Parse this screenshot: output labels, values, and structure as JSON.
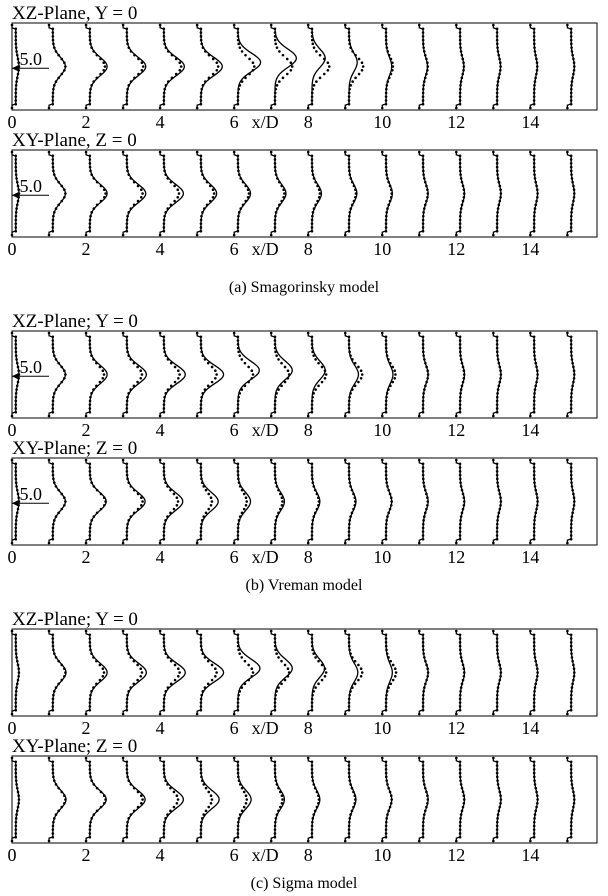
{
  "figure": {
    "captions": [
      "(a)  Smagorinsky model",
      "(b)  Vreman model",
      "(c)  Sigma model"
    ]
  },
  "chart_data": [
    {
      "type": "line",
      "title": "XZ-Plane, Y = 0",
      "xlabel": "x/D",
      "ticks": [
        0,
        2,
        4,
        6,
        8,
        10,
        12,
        14
      ],
      "xlim": [
        0,
        15.8
      ],
      "scale_label": "5.0",
      "stations": [
        0,
        1,
        2,
        3,
        4,
        5,
        6,
        7,
        8,
        9,
        10,
        11,
        12,
        13,
        14,
        15
      ],
      "series": [
        {
          "style": "solid",
          "amplitude": [
            0.1,
            0.4,
            0.55,
            0.6,
            0.65,
            0.68,
            0.72,
            0.68,
            0.42,
            0.26,
            0.18,
            0.14,
            0.12,
            0.11,
            0.1,
            0.1
          ],
          "peak": [
            0.5,
            0.5,
            0.5,
            0.5,
            0.5,
            0.5,
            0.45,
            0.4,
            0.4,
            0.45,
            0.5,
            0.5,
            0.5,
            0.5,
            0.5,
            0.5
          ]
        },
        {
          "style": "dotted",
          "amplitude": [
            0.1,
            0.4,
            0.48,
            0.52,
            0.55,
            0.55,
            0.52,
            0.55,
            0.55,
            0.45,
            0.22,
            0.15,
            0.12,
            0.11,
            0.1,
            0.1
          ],
          "peak": [
            0.5,
            0.5,
            0.5,
            0.5,
            0.5,
            0.5,
            0.5,
            0.5,
            0.5,
            0.5,
            0.5,
            0.5,
            0.5,
            0.5,
            0.5,
            0.5
          ]
        }
      ]
    },
    {
      "type": "line",
      "title": "XY-Plane, Z = 0",
      "xlabel": "x/D",
      "ticks": [
        0,
        2,
        4,
        6,
        8,
        10,
        12,
        14
      ],
      "xlim": [
        0,
        15.8
      ],
      "scale_label": "5.0",
      "stations": [
        0,
        1,
        2,
        3,
        4,
        5,
        6,
        7,
        8,
        9,
        10,
        11,
        12,
        13,
        14,
        15
      ],
      "series": [
        {
          "style": "solid",
          "amplitude": [
            0.1,
            0.4,
            0.55,
            0.6,
            0.62,
            0.5,
            0.4,
            0.35,
            0.3,
            0.25,
            0.2,
            0.16,
            0.14,
            0.12,
            0.11,
            0.1
          ],
          "peak": [
            0.5,
            0.5,
            0.5,
            0.5,
            0.5,
            0.5,
            0.5,
            0.5,
            0.5,
            0.5,
            0.5,
            0.5,
            0.5,
            0.5,
            0.5,
            0.5
          ]
        },
        {
          "style": "dotted",
          "amplitude": [
            0.1,
            0.4,
            0.5,
            0.5,
            0.48,
            0.42,
            0.35,
            0.3,
            0.25,
            0.22,
            0.18,
            0.15,
            0.13,
            0.12,
            0.11,
            0.1
          ],
          "peak": [
            0.5,
            0.5,
            0.5,
            0.5,
            0.5,
            0.5,
            0.5,
            0.5,
            0.5,
            0.5,
            0.5,
            0.5,
            0.5,
            0.5,
            0.5,
            0.5
          ]
        }
      ]
    },
    {
      "type": "line",
      "title": "XZ-Plane; Y = 0",
      "xlabel": "x/D",
      "ticks": [
        0,
        2,
        4,
        6,
        8,
        10,
        12,
        14
      ],
      "xlim": [
        0,
        15.8
      ],
      "scale_label": "5.0",
      "stations": [
        0,
        1,
        2,
        3,
        4,
        5,
        6,
        7,
        8,
        9,
        10,
        11,
        12,
        13,
        14,
        15
      ],
      "series": [
        {
          "style": "solid",
          "amplitude": [
            0.1,
            0.4,
            0.55,
            0.62,
            0.68,
            0.72,
            0.68,
            0.55,
            0.42,
            0.3,
            0.22,
            0.16,
            0.14,
            0.12,
            0.11,
            0.1
          ],
          "peak": [
            0.5,
            0.5,
            0.5,
            0.5,
            0.5,
            0.5,
            0.45,
            0.45,
            0.45,
            0.5,
            0.5,
            0.5,
            0.5,
            0.5,
            0.5,
            0.5
          ]
        },
        {
          "style": "dotted",
          "amplitude": [
            0.1,
            0.4,
            0.45,
            0.48,
            0.5,
            0.5,
            0.48,
            0.45,
            0.45,
            0.42,
            0.3,
            0.16,
            0.13,
            0.12,
            0.11,
            0.1
          ],
          "peak": [
            0.5,
            0.5,
            0.5,
            0.5,
            0.5,
            0.5,
            0.5,
            0.5,
            0.5,
            0.5,
            0.5,
            0.5,
            0.5,
            0.5,
            0.5,
            0.5
          ]
        }
      ]
    },
    {
      "type": "line",
      "title": "XY-Plane; Z = 0",
      "xlabel": "x/D",
      "ticks": [
        0,
        2,
        4,
        6,
        8,
        10,
        12,
        14
      ],
      "xlim": [
        0,
        15.8
      ],
      "scale_label": "5.0",
      "stations": [
        0,
        1,
        2,
        3,
        4,
        5,
        6,
        7,
        8,
        9,
        10,
        11,
        12,
        13,
        14,
        15
      ],
      "series": [
        {
          "style": "solid",
          "amplitude": [
            0.1,
            0.4,
            0.52,
            0.58,
            0.6,
            0.55,
            0.4,
            0.3,
            0.25,
            0.22,
            0.18,
            0.16,
            0.14,
            0.12,
            0.11,
            0.1
          ],
          "peak": [
            0.5,
            0.5,
            0.5,
            0.5,
            0.5,
            0.5,
            0.5,
            0.5,
            0.5,
            0.5,
            0.5,
            0.5,
            0.5,
            0.5,
            0.5,
            0.5
          ]
        },
        {
          "style": "dotted",
          "amplitude": [
            0.1,
            0.4,
            0.5,
            0.5,
            0.45,
            0.35,
            0.28,
            0.24,
            0.22,
            0.2,
            0.18,
            0.15,
            0.13,
            0.12,
            0.11,
            0.1
          ],
          "peak": [
            0.5,
            0.5,
            0.5,
            0.5,
            0.5,
            0.5,
            0.5,
            0.5,
            0.5,
            0.5,
            0.5,
            0.5,
            0.5,
            0.5,
            0.5,
            0.5
          ]
        }
      ]
    },
    {
      "type": "line",
      "title": "XZ-Plane; Y = 0",
      "xlabel": "x/D",
      "ticks": [
        0,
        2,
        4,
        6,
        8,
        10,
        12,
        14
      ],
      "xlim": [
        0,
        15.8
      ],
      "scale_label": "",
      "stations": [
        0,
        1,
        2,
        3,
        4,
        5,
        6,
        7,
        8,
        9,
        10,
        11,
        12,
        13,
        14,
        15
      ],
      "series": [
        {
          "style": "solid",
          "amplitude": [
            0.1,
            0.42,
            0.55,
            0.62,
            0.68,
            0.72,
            0.7,
            0.55,
            0.4,
            0.28,
            0.2,
            0.16,
            0.14,
            0.12,
            0.11,
            0.1
          ],
          "peak": [
            0.5,
            0.5,
            0.5,
            0.5,
            0.5,
            0.5,
            0.45,
            0.45,
            0.45,
            0.5,
            0.5,
            0.5,
            0.5,
            0.5,
            0.5,
            0.5
          ]
        },
        {
          "style": "dotted",
          "amplitude": [
            0.1,
            0.4,
            0.45,
            0.48,
            0.5,
            0.5,
            0.48,
            0.45,
            0.45,
            0.42,
            0.32,
            0.16,
            0.13,
            0.12,
            0.11,
            0.1
          ],
          "peak": [
            0.5,
            0.5,
            0.5,
            0.5,
            0.5,
            0.5,
            0.5,
            0.5,
            0.5,
            0.5,
            0.5,
            0.5,
            0.5,
            0.5,
            0.5,
            0.5
          ]
        }
      ]
    },
    {
      "type": "line",
      "title": "XY-Plane; Z = 0",
      "xlabel": "x/D",
      "ticks": [
        0,
        2,
        4,
        6,
        8,
        10,
        12,
        14
      ],
      "xlim": [
        0,
        15.8
      ],
      "scale_label": "",
      "stations": [
        0,
        1,
        2,
        3,
        4,
        5,
        6,
        7,
        8,
        9,
        10,
        11,
        12,
        13,
        14,
        15
      ],
      "series": [
        {
          "style": "solid",
          "amplitude": [
            0.1,
            0.42,
            0.52,
            0.58,
            0.62,
            0.58,
            0.42,
            0.3,
            0.25,
            0.22,
            0.18,
            0.16,
            0.14,
            0.12,
            0.11,
            0.1
          ],
          "peak": [
            0.5,
            0.5,
            0.5,
            0.5,
            0.5,
            0.5,
            0.5,
            0.5,
            0.5,
            0.5,
            0.5,
            0.5,
            0.5,
            0.5,
            0.5,
            0.5
          ]
        },
        {
          "style": "dotted",
          "amplitude": [
            0.1,
            0.4,
            0.5,
            0.5,
            0.45,
            0.35,
            0.28,
            0.24,
            0.22,
            0.2,
            0.18,
            0.15,
            0.13,
            0.12,
            0.11,
            0.1
          ],
          "peak": [
            0.5,
            0.5,
            0.5,
            0.5,
            0.5,
            0.5,
            0.5,
            0.5,
            0.5,
            0.5,
            0.5,
            0.5,
            0.5,
            0.5,
            0.5,
            0.5
          ]
        }
      ]
    }
  ]
}
